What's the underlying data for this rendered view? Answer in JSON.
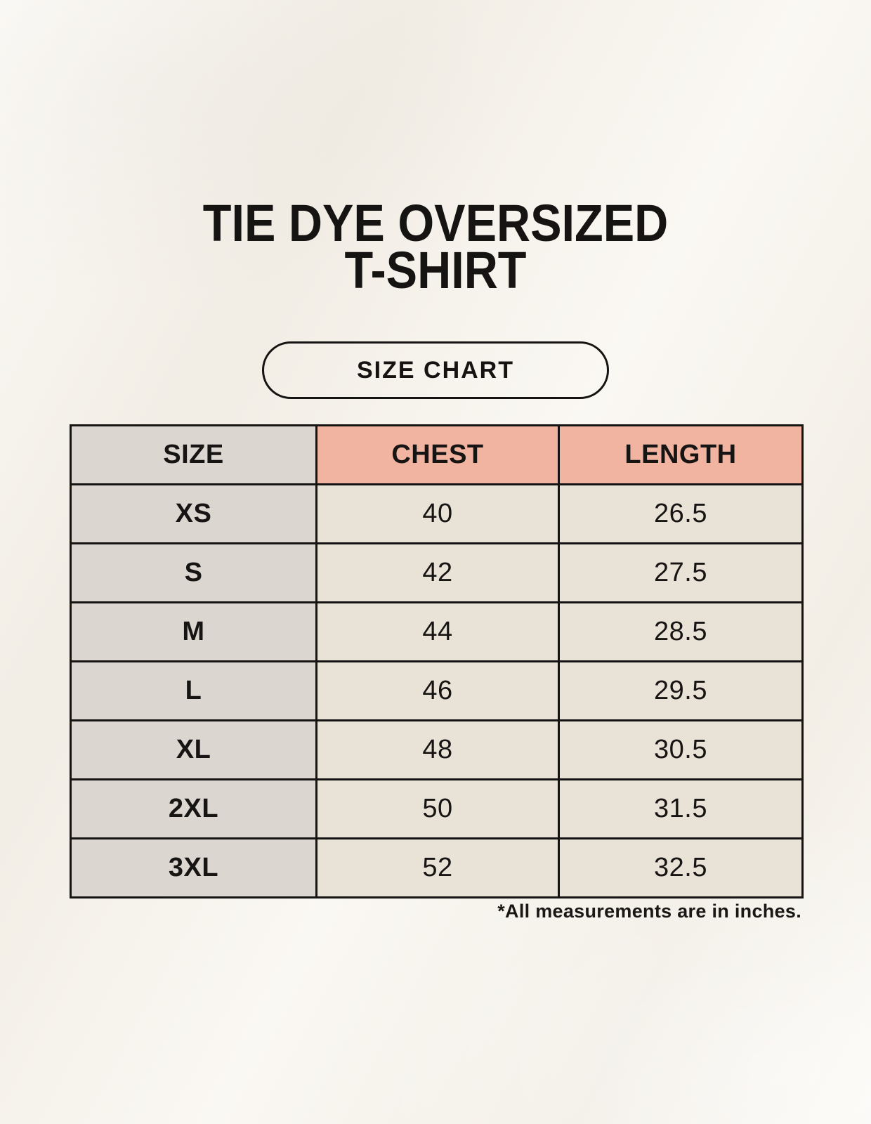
{
  "page": {
    "title_line1": "TIE DYE OVERSIZED",
    "title_line2": "T-SHIRT",
    "button_label": "SIZE CHART",
    "footnote": "*All measurements are in inches."
  },
  "table": {
    "headers": {
      "size": "SIZE",
      "chest": "CHEST",
      "length": "LENGTH"
    },
    "rows": [
      {
        "size": "XS",
        "chest": "40",
        "length": "26.5"
      },
      {
        "size": "S",
        "chest": "42",
        "length": "27.5"
      },
      {
        "size": "M",
        "chest": "44",
        "length": "28.5"
      },
      {
        "size": "L",
        "chest": "46",
        "length": "29.5"
      },
      {
        "size": "XL",
        "chest": "48",
        "length": "30.5"
      },
      {
        "size": "2XL",
        "chest": "50",
        "length": "31.5"
      },
      {
        "size": "3XL",
        "chest": "52",
        "length": "32.5"
      }
    ]
  },
  "chart_data": {
    "type": "table",
    "title": "TIE DYE OVERSIZED T-SHIRT",
    "subtitle": "SIZE CHART",
    "columns": [
      "SIZE",
      "CHEST",
      "LENGTH"
    ],
    "rows": [
      [
        "XS",
        40,
        26.5
      ],
      [
        "S",
        42,
        27.5
      ],
      [
        "M",
        44,
        28.5
      ],
      [
        "L",
        46,
        29.5
      ],
      [
        "XL",
        48,
        30.5
      ],
      [
        "2XL",
        50,
        31.5
      ],
      [
        "3XL",
        52,
        32.5
      ]
    ],
    "note": "*All measurements are in inches."
  },
  "colors": {
    "background": "#f7f3eb",
    "header_accent_pink": "#f0b4a1",
    "size_column_gray": "#dcd6d1",
    "value_cell_beige": "#e9e2d6",
    "border_black": "#161412",
    "text_black": "#171513"
  }
}
